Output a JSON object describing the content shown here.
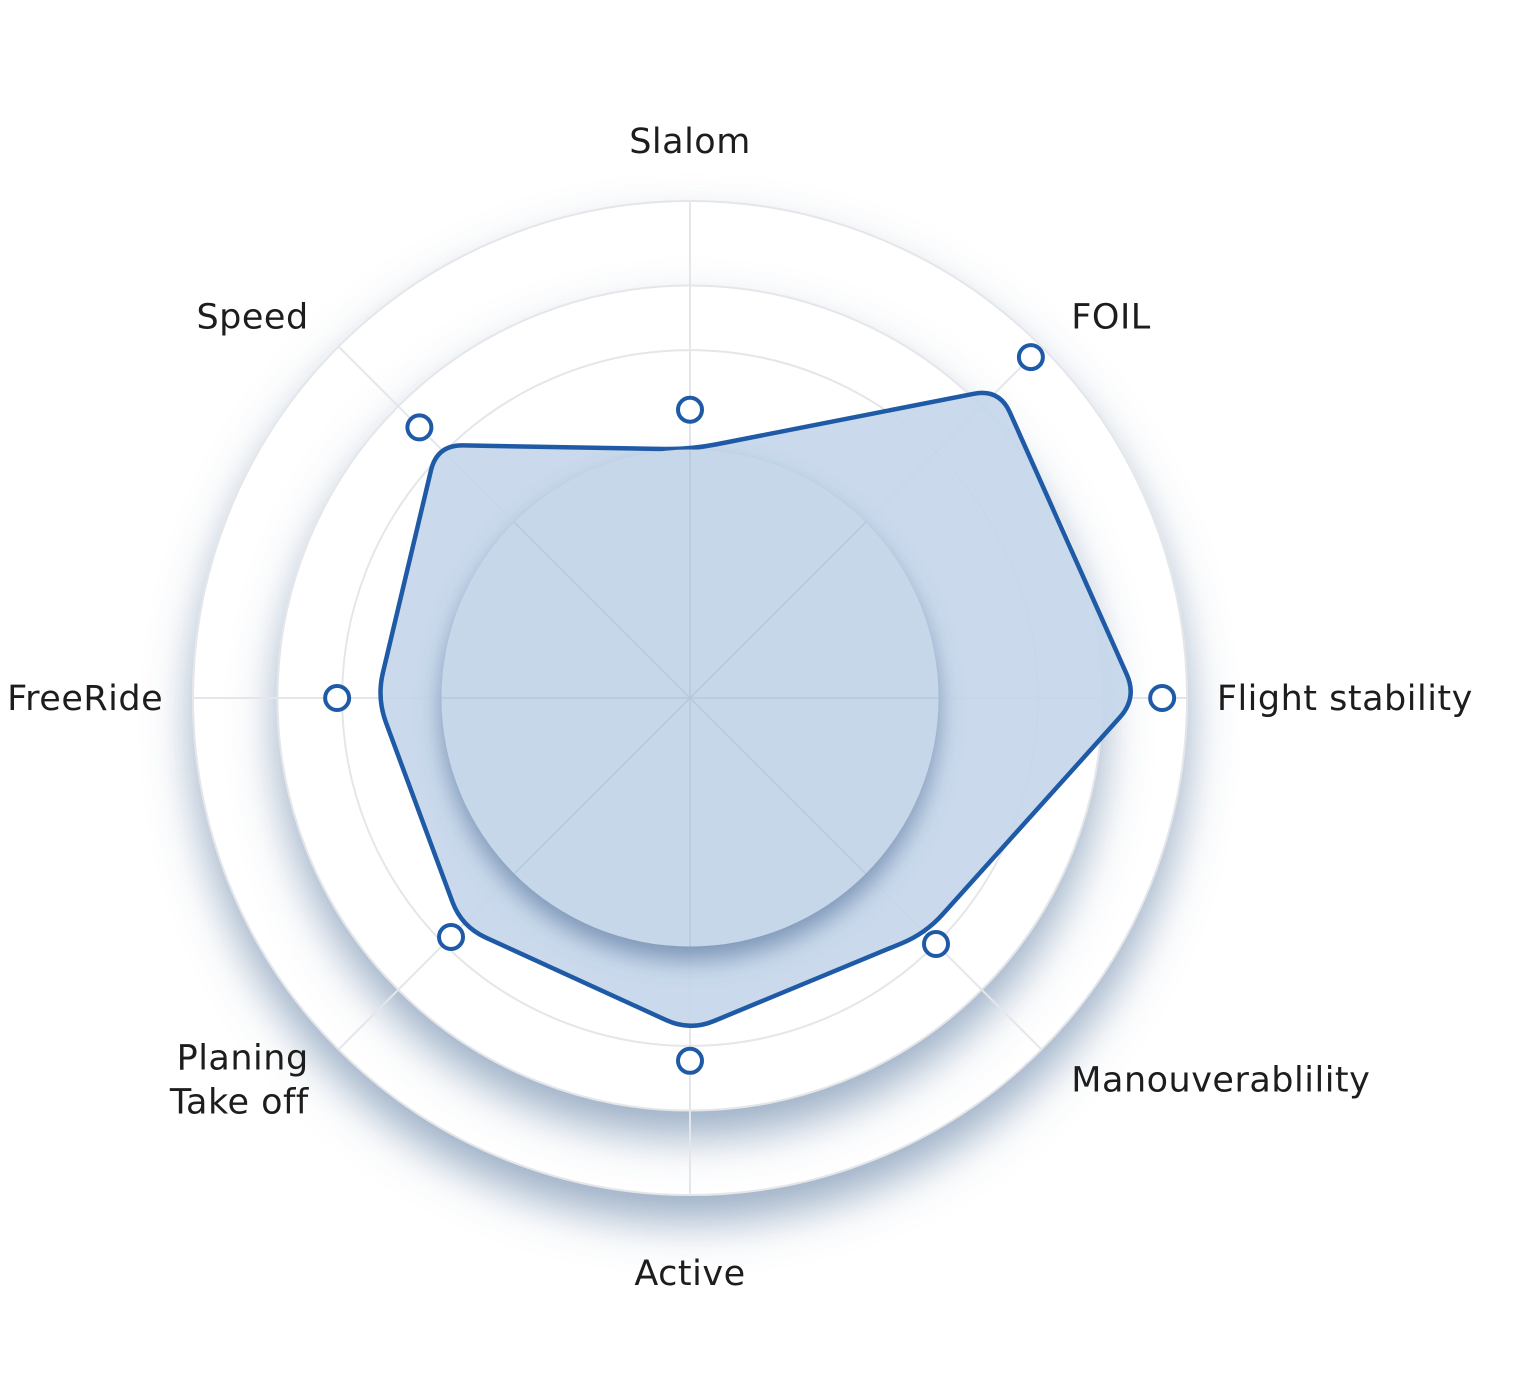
{
  "chart_data": {
    "type": "radar",
    "title": "",
    "categories": [
      "Slalom",
      "FOIL",
      "Flight stability",
      "Manouverablility",
      "Active",
      "Planing\nTake off",
      "FreeRide",
      "Speed"
    ],
    "series": [
      {
        "values": [
          5.0,
          8.8,
          9.0,
          6.7,
          6.7,
          6.5,
          6.3,
          7.2
        ],
        "markers": [
          5.8,
          9.7,
          9.5,
          7.0,
          7.3,
          6.8,
          7.1,
          7.7
        ]
      }
    ],
    "range": [
      0,
      10
    ],
    "rings": [
      5,
      7,
      8.3,
      10
    ],
    "grid": true,
    "legend": "none",
    "colors": {
      "line": "#1f5aa6",
      "fill": "#c6d7ea",
      "marker_fill": "#ffffff",
      "grid": "#e4e6ea",
      "label": "#1d1d1d",
      "shadow": "#4e6e99"
    }
  }
}
